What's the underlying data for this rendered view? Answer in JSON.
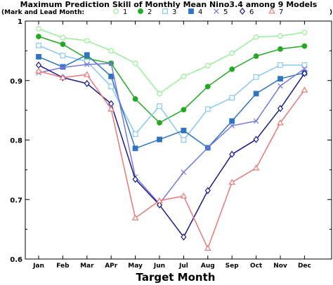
{
  "chart_data": {
    "type": "line",
    "title": "Maximum Prediction Skill of Monthly Mean Nino3.4 among 9 Models",
    "legend_header": "(Mark and Lead Month:",
    "legend_close": ")",
    "xlabel": "Target Month",
    "ylabel": "",
    "categories": [
      "Jan",
      "Feb",
      "Mar",
      "APr",
      "May",
      "Jun",
      "Jul",
      "Aug",
      "Sep",
      "Oct",
      "Nov",
      "Dec"
    ],
    "ylim": [
      0.6,
      1.0
    ],
    "yticks": [
      "0.6",
      "0.7",
      "0.8",
      "0.9",
      "1"
    ],
    "legend_position": "top",
    "grid": false,
    "series": [
      {
        "name": "1",
        "color": "#99ee99",
        "marker": "circle-open",
        "values": [
          0.987,
          0.972,
          0.967,
          0.95,
          0.929,
          0.878,
          0.907,
          0.925,
          0.946,
          0.973,
          0.975,
          0.981
        ]
      },
      {
        "name": "2",
        "color": "#22aa22",
        "marker": "circle-filled",
        "values": [
          0.974,
          0.961,
          0.937,
          0.929,
          0.869,
          0.829,
          0.851,
          0.89,
          0.919,
          0.941,
          0.953,
          0.958
        ]
      },
      {
        "name": "3",
        "color": "#88c8ee",
        "marker": "square-open",
        "values": [
          0.959,
          0.942,
          0.932,
          0.89,
          0.81,
          0.857,
          0.8,
          0.852,
          0.871,
          0.906,
          0.926,
          0.926
        ]
      },
      {
        "name": "4",
        "color": "#2e74c0",
        "marker": "square-filled",
        "values": [
          0.94,
          0.923,
          0.943,
          0.907,
          0.786,
          0.801,
          0.816,
          0.787,
          0.832,
          0.878,
          0.903,
          0.913
        ]
      },
      {
        "name": "5",
        "color": "#7777dd",
        "marker": "x",
        "values": [
          0.913,
          0.922,
          0.927,
          0.929,
          0.738,
          0.693,
          0.746,
          0.787,
          0.824,
          0.832,
          0.891,
          0.92
        ]
      },
      {
        "name": "6",
        "color": "#1a1a8a",
        "marker": "diamond-open",
        "values": [
          0.926,
          0.905,
          0.895,
          0.861,
          0.734,
          0.691,
          0.637,
          0.715,
          0.776,
          0.801,
          0.853,
          0.912
        ]
      },
      {
        "name": "7",
        "color": "#e87878",
        "marker": "triangle-open",
        "values": [
          0.916,
          0.905,
          0.91,
          0.852,
          0.669,
          0.698,
          0.706,
          0.618,
          0.729,
          0.753,
          0.829,
          0.884
        ]
      }
    ]
  }
}
